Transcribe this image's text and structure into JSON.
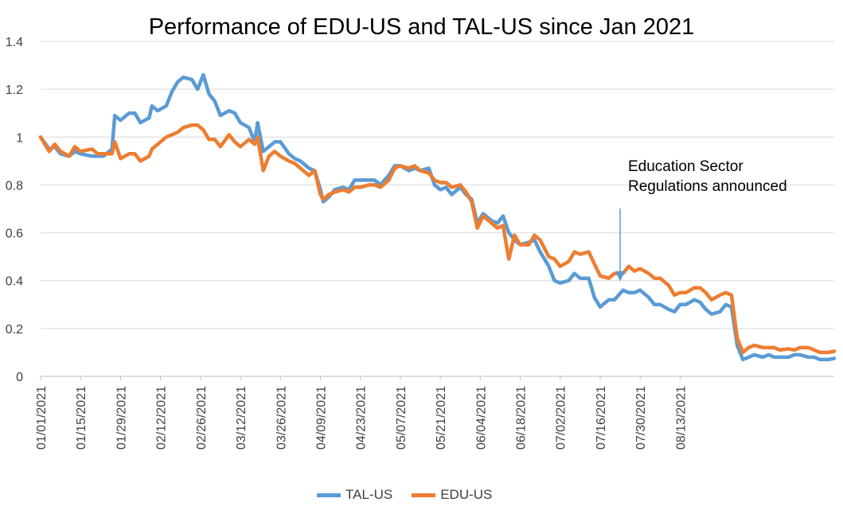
{
  "colors": {
    "TAL-US": "#5B9BD5",
    "EDU-US": "#ED7D31",
    "grid": "#D9D9D9",
    "annotation": "#5B9BD5"
  },
  "chart_data": {
    "type": "line",
    "title": "Performance of EDU-US and TAL-US since Jan 2021",
    "xlabel": "",
    "ylabel": "",
    "ylim": [
      0,
      1.4
    ],
    "yticks": [
      "0",
      "0.2",
      "0.4",
      "0.6",
      "0.8",
      "1",
      "1.2",
      "1.4"
    ],
    "xticks": [
      "01/01/2021",
      "01/15/2021",
      "01/29/2021",
      "02/12/2021",
      "02/26/2021",
      "03/12/2021",
      "03/26/2021",
      "04/09/2021",
      "04/23/2021",
      "05/07/2021",
      "05/21/2021",
      "06/04/2021",
      "06/18/2021",
      "07/02/2021",
      "07/16/2021",
      "07/30/2021",
      "08/13/2021"
    ],
    "grid": "horizontal",
    "legend_position": "bottom",
    "annotation": {
      "text_line1": "Education Sector",
      "text_line2": "Regulations announced",
      "date": "07/23/2021"
    },
    "series": [
      {
        "name": "TAL-US",
        "points": [
          [
            "01/01/2021",
            1.0
          ],
          [
            "01/04/2021",
            0.95
          ],
          [
            "01/06/2021",
            0.96
          ],
          [
            "01/08/2021",
            0.93
          ],
          [
            "01/11/2021",
            0.92
          ],
          [
            "01/13/2021",
            0.94
          ],
          [
            "01/15/2021",
            0.93
          ],
          [
            "01/19/2021",
            0.92
          ],
          [
            "01/21/2021",
            0.92
          ],
          [
            "01/23/2021",
            0.92
          ],
          [
            "01/26/2021",
            0.95
          ],
          [
            "01/27/2021",
            1.09
          ],
          [
            "01/29/2021",
            1.07
          ],
          [
            "02/01/2021",
            1.1
          ],
          [
            "02/03/2021",
            1.1
          ],
          [
            "02/05/2021",
            1.06
          ],
          [
            "02/08/2021",
            1.08
          ],
          [
            "02/09/2021",
            1.13
          ],
          [
            "02/11/2021",
            1.11
          ],
          [
            "02/14/2021",
            1.13
          ],
          [
            "02/16/2021",
            1.19
          ],
          [
            "02/18/2021",
            1.23
          ],
          [
            "02/20/2021",
            1.25
          ],
          [
            "02/23/2021",
            1.24
          ],
          [
            "02/25/2021",
            1.2
          ],
          [
            "02/27/2021",
            1.26
          ],
          [
            "03/01/2021",
            1.18
          ],
          [
            "03/03/2021",
            1.15
          ],
          [
            "03/05/2021",
            1.09
          ],
          [
            "03/08/2021",
            1.11
          ],
          [
            "03/10/2021",
            1.1
          ],
          [
            "03/12/2021",
            1.06
          ],
          [
            "03/15/2021",
            1.04
          ],
          [
            "03/17/2021",
            0.98
          ],
          [
            "03/18/2021",
            1.06
          ],
          [
            "03/20/2021",
            0.94
          ],
          [
            "03/22/2021",
            0.96
          ],
          [
            "03/24/2021",
            0.98
          ],
          [
            "03/26/2021",
            0.98
          ],
          [
            "03/29/2021",
            0.93
          ],
          [
            "03/31/2021",
            0.91
          ],
          [
            "04/02/2021",
            0.9
          ],
          [
            "04/05/2021",
            0.87
          ],
          [
            "04/07/2021",
            0.86
          ],
          [
            "04/09/2021",
            0.78
          ],
          [
            "04/10/2021",
            0.73
          ],
          [
            "04/12/2021",
            0.75
          ],
          [
            "04/14/2021",
            0.78
          ],
          [
            "04/17/2021",
            0.79
          ],
          [
            "04/19/2021",
            0.78
          ],
          [
            "04/21/2021",
            0.82
          ],
          [
            "04/23/2021",
            0.82
          ],
          [
            "04/26/2021",
            0.82
          ],
          [
            "04/28/2021",
            0.82
          ],
          [
            "04/30/2021",
            0.8
          ],
          [
            "05/03/2021",
            0.84
          ],
          [
            "05/05/2021",
            0.88
          ],
          [
            "05/07/2021",
            0.88
          ],
          [
            "05/10/2021",
            0.86
          ],
          [
            "05/12/2021",
            0.87
          ],
          [
            "05/14/2021",
            0.86
          ],
          [
            "05/17/2021",
            0.87
          ],
          [
            "05/19/2021",
            0.8
          ],
          [
            "05/21/2021",
            0.78
          ],
          [
            "05/23/2021",
            0.79
          ],
          [
            "05/25/2021",
            0.76
          ],
          [
            "05/28/2021",
            0.79
          ],
          [
            "05/30/2021",
            0.76
          ],
          [
            "06/01/2021",
            0.74
          ],
          [
            "06/03/2021",
            0.64
          ],
          [
            "06/05/2021",
            0.68
          ],
          [
            "06/08/2021",
            0.65
          ],
          [
            "06/10/2021",
            0.64
          ],
          [
            "06/12/2021",
            0.67
          ],
          [
            "06/14/2021",
            0.6
          ],
          [
            "06/16/2021",
            0.57
          ],
          [
            "06/18/2021",
            0.55
          ],
          [
            "06/21/2021",
            0.56
          ],
          [
            "06/23/2021",
            0.57
          ],
          [
            "06/25/2021",
            0.52
          ],
          [
            "06/28/2021",
            0.46
          ],
          [
            "06/30/2021",
            0.4
          ],
          [
            "07/02/2021",
            0.39
          ],
          [
            "07/05/2021",
            0.4
          ],
          [
            "07/07/2021",
            0.43
          ],
          [
            "07/09/2021",
            0.41
          ],
          [
            "07/12/2021",
            0.41
          ],
          [
            "07/14/2021",
            0.33
          ],
          [
            "07/16/2021",
            0.29
          ],
          [
            "07/19/2021",
            0.32
          ],
          [
            "07/21/2021",
            0.32
          ],
          [
            "07/24/2021",
            0.36
          ],
          [
            "07/26/2021",
            0.35
          ],
          [
            "07/28/2021",
            0.35
          ],
          [
            "07/30/2021",
            0.36
          ],
          [
            "08/02/2021",
            0.33
          ],
          [
            "08/04/2021",
            0.3
          ],
          [
            "08/06/2021",
            0.3
          ],
          [
            "08/09/2021",
            0.28
          ],
          [
            "08/11/2021",
            0.27
          ],
          [
            "08/13/2021",
            0.3
          ],
          [
            "08/15/2021",
            0.3
          ],
          [
            "08/18/2021",
            0.32
          ],
          [
            "08/20/2021",
            0.31
          ],
          [
            "08/22/2021",
            0.28
          ],
          [
            "08/24/2021",
            0.26
          ],
          [
            "08/27/2021",
            0.27
          ],
          [
            "08/29/2021",
            0.3
          ],
          [
            "08/31/2021",
            0.29
          ],
          [
            "09/02/2021",
            0.13
          ],
          [
            "09/04/2021",
            0.07
          ],
          [
            "09/06/2021",
            0.08
          ],
          [
            "09/08/2021",
            0.09
          ],
          [
            "09/11/2021",
            0.08
          ],
          [
            "09/13/2021",
            0.09
          ],
          [
            "09/15/2021",
            0.08
          ],
          [
            "09/17/2021",
            0.08
          ],
          [
            "09/20/2021",
            0.08
          ],
          [
            "09/22/2021",
            0.09
          ],
          [
            "09/24/2021",
            0.09
          ],
          [
            "09/27/2021",
            0.08
          ],
          [
            "09/29/2021",
            0.08
          ],
          [
            "10/01/2021",
            0.07
          ],
          [
            "10/04/2021",
            0.07
          ],
          [
            "10/06/2021",
            0.075
          ]
        ]
      },
      {
        "name": "EDU-US",
        "points": [
          [
            "01/01/2021",
            1.0
          ],
          [
            "01/04/2021",
            0.94
          ],
          [
            "01/06/2021",
            0.97
          ],
          [
            "01/08/2021",
            0.94
          ],
          [
            "01/11/2021",
            0.92
          ],
          [
            "01/13/2021",
            0.96
          ],
          [
            "01/15/2021",
            0.94
          ],
          [
            "01/19/2021",
            0.95
          ],
          [
            "01/21/2021",
            0.93
          ],
          [
            "01/23/2021",
            0.93
          ],
          [
            "01/26/2021",
            0.93
          ],
          [
            "01/27/2021",
            0.98
          ],
          [
            "01/29/2021",
            0.91
          ],
          [
            "02/01/2021",
            0.93
          ],
          [
            "02/03/2021",
            0.93
          ],
          [
            "02/05/2021",
            0.9
          ],
          [
            "02/08/2021",
            0.92
          ],
          [
            "02/09/2021",
            0.95
          ],
          [
            "02/11/2021",
            0.97
          ],
          [
            "02/14/2021",
            1.0
          ],
          [
            "02/16/2021",
            1.01
          ],
          [
            "02/18/2021",
            1.02
          ],
          [
            "02/20/2021",
            1.04
          ],
          [
            "02/23/2021",
            1.05
          ],
          [
            "02/25/2021",
            1.05
          ],
          [
            "02/27/2021",
            1.03
          ],
          [
            "03/01/2021",
            0.99
          ],
          [
            "03/03/2021",
            0.99
          ],
          [
            "03/05/2021",
            0.96
          ],
          [
            "03/08/2021",
            1.01
          ],
          [
            "03/10/2021",
            0.98
          ],
          [
            "03/12/2021",
            0.96
          ],
          [
            "03/15/2021",
            0.99
          ],
          [
            "03/17/2021",
            0.97
          ],
          [
            "03/18/2021",
            1.0
          ],
          [
            "03/20/2021",
            0.86
          ],
          [
            "03/22/2021",
            0.92
          ],
          [
            "03/24/2021",
            0.94
          ],
          [
            "03/26/2021",
            0.92
          ],
          [
            "03/29/2021",
            0.9
          ],
          [
            "03/31/2021",
            0.89
          ],
          [
            "04/02/2021",
            0.87
          ],
          [
            "04/05/2021",
            0.84
          ],
          [
            "04/07/2021",
            0.86
          ],
          [
            "04/09/2021",
            0.76
          ],
          [
            "04/10/2021",
            0.74
          ],
          [
            "04/12/2021",
            0.76
          ],
          [
            "04/14/2021",
            0.77
          ],
          [
            "04/17/2021",
            0.78
          ],
          [
            "04/19/2021",
            0.77
          ],
          [
            "04/21/2021",
            0.79
          ],
          [
            "04/23/2021",
            0.79
          ],
          [
            "04/26/2021",
            0.8
          ],
          [
            "04/28/2021",
            0.8
          ],
          [
            "04/30/2021",
            0.79
          ],
          [
            "05/03/2021",
            0.82
          ],
          [
            "05/05/2021",
            0.87
          ],
          [
            "05/07/2021",
            0.88
          ],
          [
            "05/10/2021",
            0.87
          ],
          [
            "05/12/2021",
            0.88
          ],
          [
            "05/14/2021",
            0.86
          ],
          [
            "05/17/2021",
            0.85
          ],
          [
            "05/19/2021",
            0.82
          ],
          [
            "05/21/2021",
            0.81
          ],
          [
            "05/23/2021",
            0.81
          ],
          [
            "05/25/2021",
            0.79
          ],
          [
            "05/28/2021",
            0.8
          ],
          [
            "05/30/2021",
            0.77
          ],
          [
            "06/01/2021",
            0.73
          ],
          [
            "06/03/2021",
            0.62
          ],
          [
            "06/05/2021",
            0.67
          ],
          [
            "06/08/2021",
            0.64
          ],
          [
            "06/10/2021",
            0.62
          ],
          [
            "06/12/2021",
            0.63
          ],
          [
            "06/14/2021",
            0.49
          ],
          [
            "06/16/2021",
            0.59
          ],
          [
            "06/18/2021",
            0.55
          ],
          [
            "06/21/2021",
            0.55
          ],
          [
            "06/23/2021",
            0.59
          ],
          [
            "06/25/2021",
            0.57
          ],
          [
            "06/28/2021",
            0.5
          ],
          [
            "06/30/2021",
            0.49
          ],
          [
            "07/02/2021",
            0.46
          ],
          [
            "07/05/2021",
            0.48
          ],
          [
            "07/07/2021",
            0.52
          ],
          [
            "07/09/2021",
            0.51
          ],
          [
            "07/12/2021",
            0.52
          ],
          [
            "07/14/2021",
            0.47
          ],
          [
            "07/16/2021",
            0.42
          ],
          [
            "07/19/2021",
            0.41
          ],
          [
            "07/21/2021",
            0.43
          ],
          [
            "07/24/2021",
            0.43
          ],
          [
            "07/26/2021",
            0.46
          ],
          [
            "07/28/2021",
            0.44
          ],
          [
            "07/30/2021",
            0.45
          ],
          [
            "08/02/2021",
            0.43
          ],
          [
            "08/04/2021",
            0.41
          ],
          [
            "08/06/2021",
            0.41
          ],
          [
            "08/09/2021",
            0.38
          ],
          [
            "08/11/2021",
            0.34
          ],
          [
            "08/13/2021",
            0.35
          ],
          [
            "08/15/2021",
            0.35
          ],
          [
            "08/18/2021",
            0.37
          ],
          [
            "08/20/2021",
            0.37
          ],
          [
            "08/22/2021",
            0.35
          ],
          [
            "08/24/2021",
            0.32
          ],
          [
            "08/27/2021",
            0.34
          ],
          [
            "08/29/2021",
            0.35
          ],
          [
            "08/31/2021",
            0.34
          ],
          [
            "09/02/2021",
            0.16
          ],
          [
            "09/04/2021",
            0.1
          ],
          [
            "09/06/2021",
            0.12
          ],
          [
            "09/08/2021",
            0.13
          ],
          [
            "09/11/2021",
            0.12
          ],
          [
            "09/13/2021",
            0.12
          ],
          [
            "09/15/2021",
            0.12
          ],
          [
            "09/17/2021",
            0.11
          ],
          [
            "09/20/2021",
            0.115
          ],
          [
            "09/22/2021",
            0.11
          ],
          [
            "09/24/2021",
            0.12
          ],
          [
            "09/27/2021",
            0.12
          ],
          [
            "09/29/2021",
            0.11
          ],
          [
            "10/01/2021",
            0.1
          ],
          [
            "10/04/2021",
            0.1
          ],
          [
            "10/06/2021",
            0.105
          ]
        ]
      }
    ]
  }
}
